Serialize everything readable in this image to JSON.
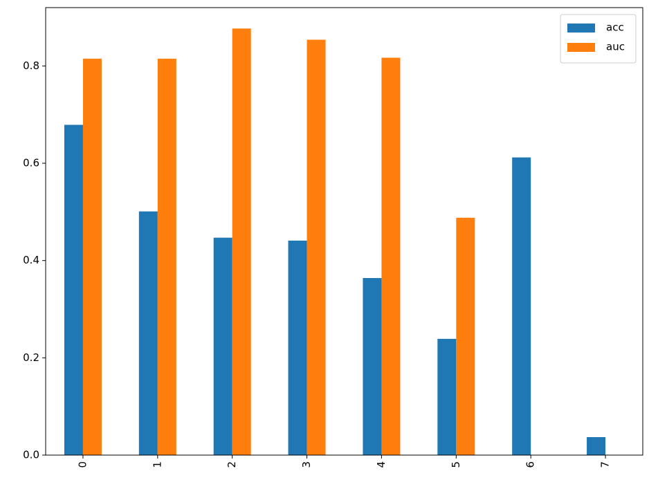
{
  "chart_data": {
    "type": "bar",
    "categories": [
      "0",
      "1",
      "2",
      "3",
      "4",
      "5",
      "6",
      "7"
    ],
    "series": [
      {
        "name": "acc",
        "color": "#1f77b4",
        "values": [
          0.679,
          0.501,
          0.447,
          0.441,
          0.364,
          0.239,
          0.612,
          0.037
        ]
      },
      {
        "name": "auc",
        "color": "#ff7f0e",
        "values": [
          0.815,
          0.815,
          0.877,
          0.854,
          0.817,
          0.488,
          null,
          null
        ]
      }
    ],
    "y_ticks": [
      "0.0",
      "0.2",
      "0.4",
      "0.6",
      "0.8"
    ],
    "ylim": [
      0,
      0.92
    ],
    "title": "",
    "xlabel": "",
    "ylabel": "",
    "legend_position": "top-right",
    "grid": false
  }
}
